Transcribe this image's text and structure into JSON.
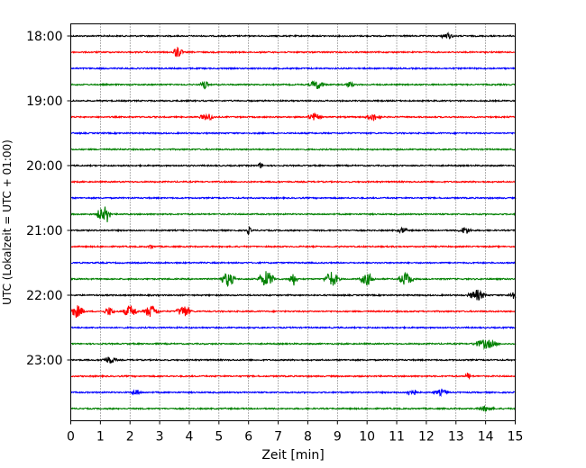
{
  "chart_data": {
    "type": "line",
    "title": "",
    "xlabel": "Zeit  [min]",
    "ylabel": "UTC (Lokalzeit = UTC + 01:00)",
    "xlim": [
      0,
      15
    ],
    "xticks": [
      "0",
      "1",
      "2",
      "3",
      "4",
      "5",
      "6",
      "7",
      "8",
      "9",
      "10",
      "11",
      "12",
      "13",
      "14",
      "15"
    ],
    "ylim_minutes": [
      "18:00",
      "23:45"
    ],
    "yticks": [
      "18:00",
      "19:00",
      "20:00",
      "21:00",
      "22:00",
      "23:00"
    ],
    "grid": "vertical dotted",
    "trace_interval_minutes": 15,
    "trace_colors": [
      "#000000",
      "#ff0000",
      "#0000ff",
      "#008000"
    ],
    "traces": [
      {
        "start": "18:00",
        "color": "#000000",
        "events": [
          [
            12.7,
            0.25,
            3
          ]
        ]
      },
      {
        "start": "18:15",
        "color": "#ff0000",
        "events": [
          [
            3.6,
            0.2,
            7
          ]
        ]
      },
      {
        "start": "18:30",
        "color": "#0000ff",
        "events": []
      },
      {
        "start": "18:45",
        "color": "#008000",
        "events": [
          [
            4.5,
            0.15,
            6
          ],
          [
            8.3,
            0.3,
            5
          ],
          [
            9.4,
            0.2,
            3
          ]
        ]
      },
      {
        "start": "19:00",
        "color": "#000000",
        "events": []
      },
      {
        "start": "19:15",
        "color": "#ff0000",
        "events": [
          [
            4.6,
            0.3,
            4
          ],
          [
            8.2,
            0.3,
            4
          ],
          [
            10.2,
            0.3,
            4
          ]
        ]
      },
      {
        "start": "19:30",
        "color": "#0000ff",
        "events": []
      },
      {
        "start": "19:45",
        "color": "#008000",
        "events": []
      },
      {
        "start": "20:00",
        "color": "#000000",
        "events": [
          [
            6.4,
            0.1,
            3
          ]
        ]
      },
      {
        "start": "20:15",
        "color": "#ff0000",
        "events": []
      },
      {
        "start": "20:30",
        "color": "#0000ff",
        "events": []
      },
      {
        "start": "20:45",
        "color": "#008000",
        "events": [
          [
            1.0,
            0.15,
            9
          ],
          [
            1.2,
            0.15,
            11
          ]
        ]
      },
      {
        "start": "21:00",
        "color": "#000000",
        "events": [
          [
            6.0,
            0.1,
            4
          ],
          [
            11.2,
            0.2,
            3
          ],
          [
            13.3,
            0.25,
            4
          ]
        ]
      },
      {
        "start": "21:15",
        "color": "#ff0000",
        "events": [
          [
            2.7,
            0.1,
            3
          ]
        ]
      },
      {
        "start": "21:30",
        "color": "#0000ff",
        "events": []
      },
      {
        "start": "21:45",
        "color": "#008000",
        "events": [
          [
            5.3,
            0.3,
            8
          ],
          [
            6.6,
            0.35,
            9
          ],
          [
            7.5,
            0.2,
            7
          ],
          [
            8.8,
            0.3,
            9
          ],
          [
            10.0,
            0.3,
            7
          ],
          [
            11.3,
            0.3,
            8
          ]
        ]
      },
      {
        "start": "22:00",
        "color": "#000000",
        "events": [
          [
            13.7,
            0.35,
            6
          ],
          [
            14.9,
            0.15,
            6
          ]
        ]
      },
      {
        "start": "22:15",
        "color": "#ff0000",
        "events": [
          [
            0.2,
            0.3,
            7
          ],
          [
            1.3,
            0.2,
            5
          ],
          [
            2.0,
            0.3,
            7
          ],
          [
            2.7,
            0.3,
            7
          ],
          [
            3.8,
            0.3,
            7
          ]
        ]
      },
      {
        "start": "22:30",
        "color": "#0000ff",
        "events": []
      },
      {
        "start": "22:45",
        "color": "#008000",
        "events": [
          [
            14.0,
            0.5,
            5
          ]
        ]
      },
      {
        "start": "23:00",
        "color": "#000000",
        "events": [
          [
            1.3,
            0.3,
            4
          ]
        ]
      },
      {
        "start": "23:15",
        "color": "#ff0000",
        "events": [
          [
            13.4,
            0.1,
            4
          ]
        ]
      },
      {
        "start": "23:30",
        "color": "#0000ff",
        "events": [
          [
            2.2,
            0.2,
            3
          ],
          [
            11.5,
            0.2,
            5
          ],
          [
            12.5,
            0.3,
            3
          ]
        ]
      },
      {
        "start": "23:45",
        "color": "#008000",
        "events": [
          [
            14.0,
            0.3,
            3
          ]
        ]
      }
    ]
  }
}
